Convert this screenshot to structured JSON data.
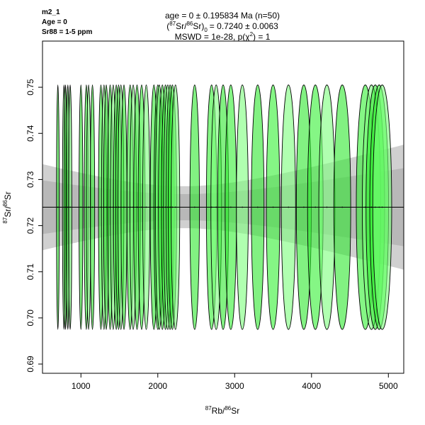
{
  "chart_data": {
    "type": "scatter",
    "subtype": "isochron-error-ellipses",
    "corner_labels": [
      "m2_1",
      "Age = 0",
      "Sr88 = 1-5 ppm"
    ],
    "title_lines": {
      "line1": "age = 0 ± 0.195834 Ma (n=50)",
      "line2_prefix": "(",
      "line2_sup_a": "87",
      "line2_mid_a": "Sr/",
      "line2_sup_b": "86",
      "line2_mid_b": "Sr)",
      "line2_sub": "0",
      "line2_suffix": "= 0.7240 ± 0.0063",
      "line3_prefix": "MSWD = 1e-28, p(χ",
      "line3_sup": "2",
      "line3_suffix": ") = 1"
    },
    "xlabel": {
      "sup_a": "87",
      "text_a": "Rb/",
      "sup_b": "86",
      "text_b": "Sr"
    },
    "ylabel": {
      "sup_a": "87",
      "text_a": "Sr/",
      "sup_b": "86",
      "text_b": "Sr"
    },
    "xlim": [
      500,
      5200
    ],
    "ylim": [
      0.688,
      0.76
    ],
    "xticks": [
      "1000",
      "2000",
      "3000",
      "4000",
      "5000"
    ],
    "yticks": [
      "0.69",
      "0.70",
      "0.71",
      "0.72",
      "0.73",
      "0.74",
      "0.75"
    ],
    "grid": false,
    "intercept": 0.724,
    "slope": 0,
    "intercept_error": 0.0063,
    "ellipse_y": 0.724,
    "ellipse_half_height": 0.0265,
    "ellipse_x_rel_half_width": 0.025,
    "x": [
      700,
      780,
      800,
      830,
      860,
      1000,
      1070,
      1100,
      1150,
      1260,
      1300,
      1330,
      1380,
      1420,
      1460,
      1490,
      1520,
      1560,
      1640,
      1680,
      1730,
      1790,
      1850,
      1950,
      2000,
      2020,
      2060,
      2100,
      2130,
      2160,
      2190,
      2230,
      2480,
      2700,
      2760,
      2850,
      2950,
      3100,
      3300,
      3500,
      3700,
      3900,
      4050,
      4200,
      4400,
      4700,
      4780,
      4830,
      4880,
      4920
    ],
    "fills": [
      "#33f033",
      "#7cff7c",
      "#2ee82e"
    ],
    "colors": {
      "ellipse_stroke": "#000000",
      "outer_band": "#d0d0d0",
      "inner_band": "#b8b8b8",
      "line": "#000000"
    }
  }
}
